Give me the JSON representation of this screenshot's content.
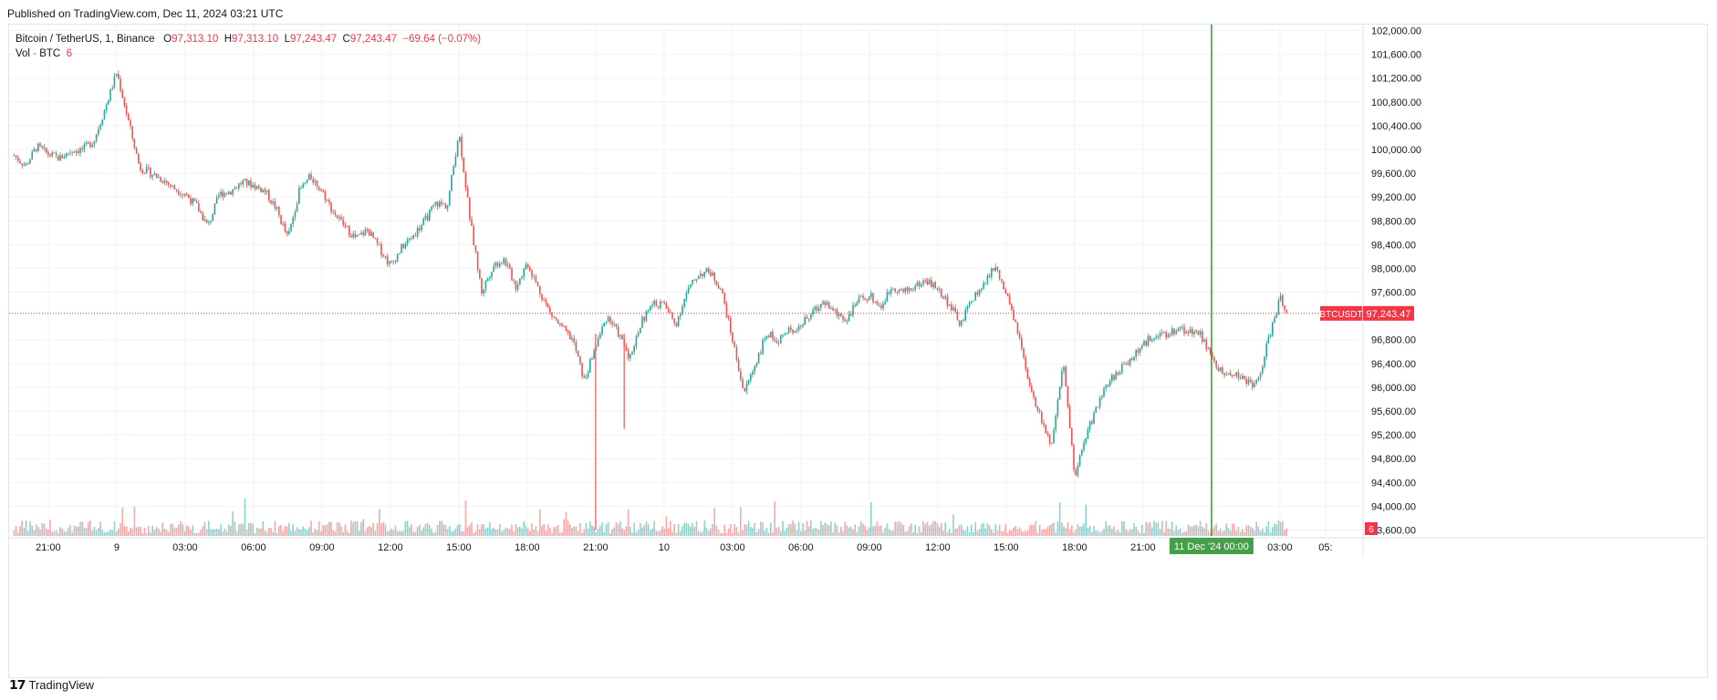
{
  "header": {
    "published": "Published on TradingView.com, Dec 11, 2024 03:21 UTC"
  },
  "legend": {
    "symbol": "Bitcoin / TetherUS, 1, Binance",
    "o_label": "O",
    "o_value": "97,313.10",
    "h_label": "H",
    "h_value": "97,313.10",
    "l_label": "L",
    "l_value": "97,243.47",
    "c_label": "C",
    "c_value": "97,243.47",
    "change": "−69.64 (−0.07%)",
    "vol_label": "Vol · BTC",
    "vol_value": "6"
  },
  "footer": {
    "brand": "TradingView",
    "logo_icon": "tradingview-logo-icon"
  },
  "colors": {
    "up": "#26a69a",
    "down": "#ef5350",
    "last_price": "#f23645",
    "marker_line": "#2e9e2e",
    "marker_bg": "#43a047",
    "grid": "#f0f3fa",
    "axis_text": "#131722"
  },
  "chart_data": {
    "type": "candlestick",
    "title": "Bitcoin / TetherUS, 1, Binance",
    "x_axis": {
      "ticks": [
        "21:00",
        "9",
        "03:00",
        "06:00",
        "09:00",
        "12:00",
        "15:00",
        "18:00",
        "21:00",
        "10",
        "03:00",
        "06:00",
        "09:00",
        "12:00",
        "15:00",
        "18:00",
        "21:00",
        "03:00",
        "05:"
      ],
      "highlight_label": "11 Dec '24   00:00"
    },
    "y_axis": {
      "ticks": [
        "102,000.00",
        "101,600.00",
        "101,200.00",
        "100,800.00",
        "100,400.00",
        "100,000.00",
        "99,600.00",
        "99,200.00",
        "98,800.00",
        "98,400.00",
        "98,000.00",
        "97,600.00",
        "96,800.00",
        "96,400.00",
        "96,000.00",
        "95,600.00",
        "95,200.00",
        "94,800.00",
        "94,400.00",
        "94,000.00",
        "93,600.00"
      ],
      "range": [
        93500,
        102100
      ]
    },
    "last_price": {
      "label": "BTCUSDT",
      "value": "97,243.47",
      "price": 97243.47
    },
    "volume_badge": "6",
    "grid": true,
    "price_path": [
      [
        "2024-12-08 19:30",
        99900
      ],
      [
        "2024-12-08 20:00",
        99720
      ],
      [
        "2024-12-08 20:30",
        100050
      ],
      [
        "2024-12-08 21:00",
        99920
      ],
      [
        "2024-12-08 21:30",
        99850
      ],
      [
        "2024-12-08 22:00",
        99980
      ],
      [
        "2024-12-08 22:30",
        100000
      ],
      [
        "2024-12-08 23:00",
        100150
      ],
      [
        "2024-12-08 23:30",
        100700
      ],
      [
        "2024-12-09 00:00",
        101300
      ],
      [
        "2024-12-09 00:30",
        100500
      ],
      [
        "2024-12-09 01:00",
        99700
      ],
      [
        "2024-12-09 01:30",
        99600
      ],
      [
        "2024-12-09 02:00",
        99500
      ],
      [
        "2024-12-09 02:30",
        99350
      ],
      [
        "2024-12-09 03:00",
        99250
      ],
      [
        "2024-12-09 03:30",
        99050
      ],
      [
        "2024-12-09 04:00",
        98700
      ],
      [
        "2024-12-09 04:30",
        99250
      ],
      [
        "2024-12-09 05:00",
        99300
      ],
      [
        "2024-12-09 05:30",
        99450
      ],
      [
        "2024-12-09 06:00",
        99400
      ],
      [
        "2024-12-09 06:30",
        99300
      ],
      [
        "2024-12-09 07:00",
        99000
      ],
      [
        "2024-12-09 07:30",
        98500
      ],
      [
        "2024-12-09 08:00",
        99300
      ],
      [
        "2024-12-09 08:30",
        99550
      ],
      [
        "2024-12-09 09:00",
        99300
      ],
      [
        "2024-12-09 09:30",
        98950
      ],
      [
        "2024-12-09 10:00",
        98700
      ],
      [
        "2024-12-09 10:30",
        98500
      ],
      [
        "2024-12-09 11:00",
        98650
      ],
      [
        "2024-12-09 11:30",
        98350
      ],
      [
        "2024-12-09 12:00",
        98050
      ],
      [
        "2024-12-09 12:30",
        98350
      ],
      [
        "2024-12-09 13:00",
        98550
      ],
      [
        "2024-12-09 13:30",
        98800
      ],
      [
        "2024-12-09 14:00",
        99100
      ],
      [
        "2024-12-09 14:30",
        99050
      ],
      [
        "2024-12-09 15:00",
        100300
      ],
      [
        "2024-12-09 15:30",
        98800
      ],
      [
        "2024-12-09 16:00",
        97600
      ],
      [
        "2024-12-09 16:30",
        98050
      ],
      [
        "2024-12-09 17:00",
        98150
      ],
      [
        "2024-12-09 17:30",
        97700
      ],
      [
        "2024-12-09 18:00",
        98100
      ],
      [
        "2024-12-09 18:30",
        97650
      ],
      [
        "2024-12-09 19:00",
        97250
      ],
      [
        "2024-12-09 19:30",
        97000
      ],
      [
        "2024-12-09 20:00",
        96800
      ],
      [
        "2024-12-09 20:30",
        96100
      ],
      [
        "2024-12-09 21:00",
        96700
      ],
      [
        "2024-12-09 21:30",
        97200
      ],
      [
        "2024-12-09 22:00",
        96900
      ],
      [
        "2024-12-09 22:30",
        96500
      ],
      [
        "2024-12-09 23:00",
        97100
      ],
      [
        "2024-12-09 23:30",
        97400
      ],
      [
        "2024-12-10 00:00",
        97400
      ],
      [
        "2024-12-10 00:30",
        97050
      ],
      [
        "2024-12-10 01:00",
        97600
      ],
      [
        "2024-12-10 01:30",
        97900
      ],
      [
        "2024-12-10 02:00",
        97950
      ],
      [
        "2024-12-10 02:30",
        97650
      ],
      [
        "2024-12-10 03:00",
        96800
      ],
      [
        "2024-12-10 03:30",
        95900
      ],
      [
        "2024-12-10 04:00",
        96400
      ],
      [
        "2024-12-10 04:30",
        96900
      ],
      [
        "2024-12-10 05:00",
        96800
      ],
      [
        "2024-12-10 05:30",
        96950
      ],
      [
        "2024-12-10 06:00",
        97050
      ],
      [
        "2024-12-10 06:30",
        97250
      ],
      [
        "2024-12-10 07:00",
        97450
      ],
      [
        "2024-12-10 07:30",
        97250
      ],
      [
        "2024-12-10 08:00",
        97150
      ],
      [
        "2024-12-10 08:30",
        97450
      ],
      [
        "2024-12-10 09:00",
        97550
      ],
      [
        "2024-12-10 09:30",
        97350
      ],
      [
        "2024-12-10 10:00",
        97700
      ],
      [
        "2024-12-10 10:30",
        97600
      ],
      [
        "2024-12-10 11:00",
        97700
      ],
      [
        "2024-12-10 11:30",
        97800
      ],
      [
        "2024-12-10 12:00",
        97650
      ],
      [
        "2024-12-10 12:30",
        97400
      ],
      [
        "2024-12-10 13:00",
        97050
      ],
      [
        "2024-12-10 13:30",
        97500
      ],
      [
        "2024-12-10 14:00",
        97700
      ],
      [
        "2024-12-10 14:30",
        98050
      ],
      [
        "2024-12-10 15:00",
        97550
      ],
      [
        "2024-12-10 15:30",
        96950
      ],
      [
        "2024-12-10 16:00",
        96000
      ],
      [
        "2024-12-10 16:30",
        95500
      ],
      [
        "2024-12-10 17:00",
        95000
      ],
      [
        "2024-12-10 17:30",
        96400
      ],
      [
        "2024-12-10 18:00",
        94500
      ],
      [
        "2024-12-10 18:30",
        95200
      ],
      [
        "2024-12-10 19:00",
        95700
      ],
      [
        "2024-12-10 19:30",
        96100
      ],
      [
        "2024-12-10 20:00",
        96300
      ],
      [
        "2024-12-10 20:30",
        96500
      ],
      [
        "2024-12-10 21:00",
        96700
      ],
      [
        "2024-12-10 21:30",
        96900
      ],
      [
        "2024-12-10 22:00",
        96850
      ],
      [
        "2024-12-10 22:30",
        97000
      ],
      [
        "2024-12-10 23:00",
        96950
      ],
      [
        "2024-12-10 23:30",
        96900
      ],
      [
        "2024-12-11 00:00",
        96500
      ],
      [
        "2024-12-11 00:30",
        96200
      ],
      [
        "2024-12-11 01:00",
        96250
      ],
      [
        "2024-12-11 01:30",
        96100
      ],
      [
        "2024-12-11 02:00",
        96050
      ],
      [
        "2024-12-11 02:30",
        96800
      ],
      [
        "2024-12-11 03:00",
        97500
      ],
      [
        "2024-12-11 03:21",
        97243
      ]
    ]
  }
}
